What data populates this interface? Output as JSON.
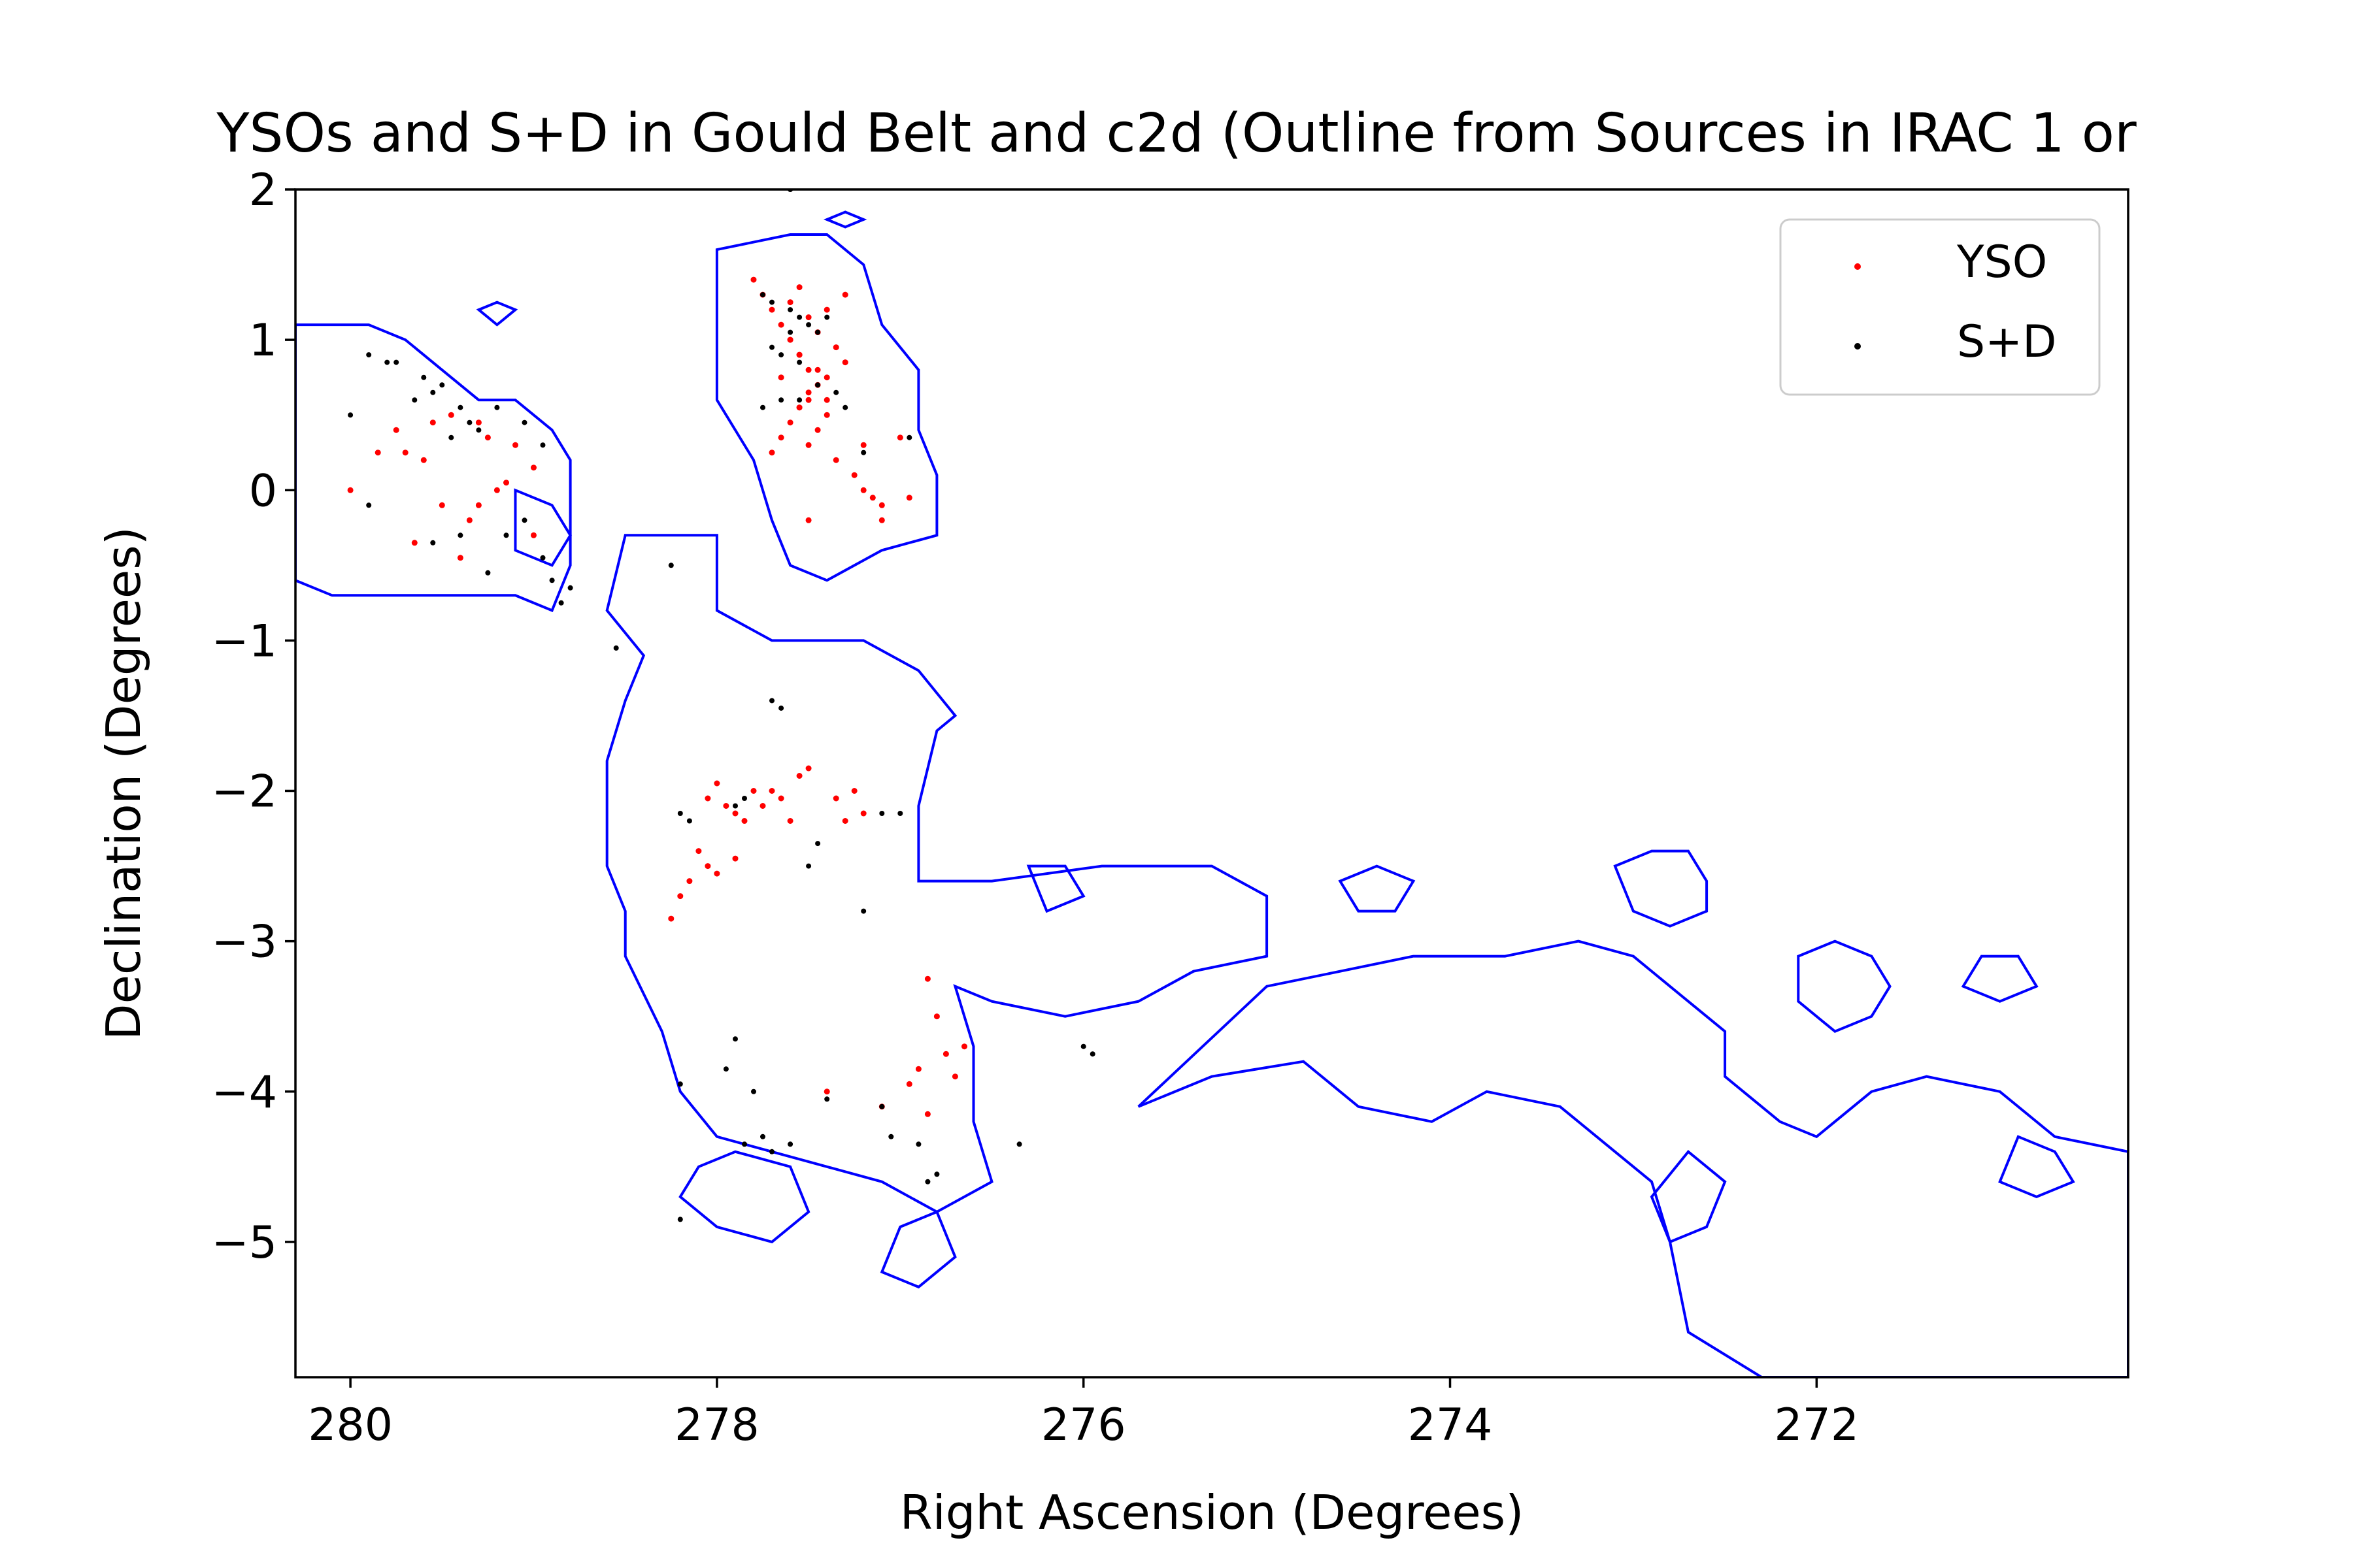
{
  "chart_data": {
    "type": "scatter",
    "title": "YSOs and S+D in Gould Belt and c2d (Outline from Sources in IRAC 1 or",
    "xlabel": "Right Ascension (Degrees)",
    "ylabel": "Declination (Degrees)",
    "xlim": [
      280.3,
      270.3
    ],
    "ylim": [
      -5.9,
      2.0
    ],
    "x_inverted": true,
    "xticks": [
      280,
      278,
      276,
      274,
      272
    ],
    "xtick_labels": [
      "280",
      "278",
      "276",
      "274",
      "272"
    ],
    "yticks": [
      2,
      1,
      0,
      -1,
      -2,
      -3,
      -4,
      -5
    ],
    "ytick_labels": [
      "2",
      "1",
      "0",
      "−1",
      "−2",
      "−3",
      "−4",
      "−5"
    ],
    "grid": false,
    "legend_position": "top-right",
    "outline_color": "#0000ff",
    "outline_polygons": [
      [
        [
          280.3,
          1.1
        ],
        [
          280.1,
          1.1
        ],
        [
          279.9,
          1.1
        ],
        [
          279.7,
          1.0
        ],
        [
          279.5,
          0.8
        ],
        [
          279.3,
          0.6
        ],
        [
          279.1,
          0.6
        ],
        [
          278.9,
          0.4
        ],
        [
          278.8,
          0.2
        ],
        [
          278.8,
          -0.1
        ],
        [
          278.8,
          -0.5
        ],
        [
          278.9,
          -0.8
        ],
        [
          279.1,
          -0.7
        ],
        [
          279.4,
          -0.7
        ],
        [
          279.7,
          -0.7
        ],
        [
          279.9,
          -0.7
        ],
        [
          280.1,
          -0.7
        ],
        [
          280.3,
          -0.6
        ]
      ],
      [
        [
          278.5,
          -0.3
        ],
        [
          278.0,
          -0.3
        ],
        [
          278.0,
          -0.8
        ],
        [
          277.7,
          -1.0
        ],
        [
          277.2,
          -1.0
        ],
        [
          276.9,
          -1.2
        ],
        [
          276.7,
          -1.5
        ],
        [
          276.8,
          -1.6
        ],
        [
          276.9,
          -2.1
        ],
        [
          276.9,
          -2.6
        ],
        [
          276.5,
          -2.6
        ],
        [
          275.9,
          -2.5
        ],
        [
          275.3,
          -2.5
        ],
        [
          275.0,
          -2.7
        ],
        [
          275.0,
          -3.1
        ],
        [
          275.4,
          -3.2
        ],
        [
          275.7,
          -3.4
        ],
        [
          276.1,
          -3.5
        ],
        [
          276.5,
          -3.4
        ],
        [
          276.7,
          -3.3
        ],
        [
          276.6,
          -3.7
        ],
        [
          276.6,
          -4.2
        ],
        [
          276.5,
          -4.6
        ],
        [
          276.8,
          -4.8
        ],
        [
          277.1,
          -4.6
        ],
        [
          277.4,
          -4.5
        ],
        [
          277.7,
          -4.4
        ],
        [
          278.0,
          -4.3
        ],
        [
          278.2,
          -4.0
        ],
        [
          278.3,
          -3.6
        ],
        [
          278.5,
          -3.1
        ],
        [
          278.5,
          -2.8
        ],
        [
          278.6,
          -2.5
        ],
        [
          278.6,
          -1.8
        ],
        [
          278.5,
          -1.4
        ],
        [
          278.4,
          -1.1
        ],
        [
          278.6,
          -0.8
        ]
      ],
      [
        [
          278.0,
          1.6
        ],
        [
          277.6,
          1.7
        ],
        [
          277.4,
          1.7
        ],
        [
          277.2,
          1.5
        ],
        [
          277.1,
          1.1
        ],
        [
          276.9,
          0.8
        ],
        [
          276.9,
          0.4
        ],
        [
          276.8,
          0.1
        ],
        [
          276.8,
          -0.3
        ],
        [
          277.1,
          -0.4
        ],
        [
          277.4,
          -0.6
        ],
        [
          277.6,
          -0.5
        ],
        [
          277.7,
          -0.2
        ],
        [
          277.8,
          0.2
        ],
        [
          278.0,
          0.6
        ],
        [
          278.0,
          1.1
        ]
      ],
      [
        [
          275.0,
          -3.3
        ],
        [
          274.6,
          -3.2
        ],
        [
          274.2,
          -3.1
        ],
        [
          273.7,
          -3.1
        ],
        [
          273.3,
          -3.0
        ],
        [
          273.0,
          -3.1
        ],
        [
          272.7,
          -3.4
        ],
        [
          272.5,
          -3.6
        ],
        [
          272.5,
          -3.9
        ],
        [
          272.2,
          -4.2
        ],
        [
          272.0,
          -4.3
        ],
        [
          271.7,
          -4.0
        ],
        [
          271.4,
          -3.9
        ],
        [
          271.0,
          -4.0
        ],
        [
          270.7,
          -4.3
        ],
        [
          270.3,
          -4.4
        ],
        [
          270.3,
          -5.9
        ],
        [
          271.0,
          -5.9
        ],
        [
          271.7,
          -5.9
        ],
        [
          272.3,
          -5.9
        ],
        [
          272.7,
          -5.6
        ],
        [
          272.8,
          -5.0
        ],
        [
          272.9,
          -4.6
        ],
        [
          273.1,
          -4.4
        ],
        [
          273.4,
          -4.1
        ],
        [
          273.8,
          -4.0
        ],
        [
          274.1,
          -4.2
        ],
        [
          274.5,
          -4.1
        ],
        [
          274.8,
          -3.8
        ],
        [
          275.3,
          -3.9
        ],
        [
          275.7,
          -4.1
        ]
      ],
      [
        [
          273.1,
          -2.5
        ],
        [
          272.9,
          -2.4
        ],
        [
          272.7,
          -2.4
        ],
        [
          272.6,
          -2.6
        ],
        [
          272.6,
          -2.8
        ],
        [
          272.8,
          -2.9
        ],
        [
          273.0,
          -2.8
        ]
      ],
      [
        [
          272.1,
          -3.1
        ],
        [
          271.9,
          -3.0
        ],
        [
          271.7,
          -3.1
        ],
        [
          271.6,
          -3.3
        ],
        [
          271.7,
          -3.5
        ],
        [
          271.9,
          -3.6
        ],
        [
          272.1,
          -3.4
        ]
      ],
      [
        [
          279.1,
          0.0
        ],
        [
          278.9,
          -0.1
        ],
        [
          278.8,
          -0.3
        ],
        [
          278.9,
          -0.5
        ],
        [
          279.1,
          -0.4
        ]
      ],
      [
        [
          277.0,
          -4.9
        ],
        [
          276.8,
          -4.8
        ],
        [
          276.7,
          -5.1
        ],
        [
          276.9,
          -5.3
        ],
        [
          277.1,
          -5.2
        ]
      ],
      [
        [
          278.1,
          -4.5
        ],
        [
          277.9,
          -4.4
        ],
        [
          277.6,
          -4.5
        ],
        [
          277.5,
          -4.8
        ],
        [
          277.7,
          -5.0
        ],
        [
          278.0,
          -4.9
        ],
        [
          278.2,
          -4.7
        ]
      ],
      [
        [
          271.1,
          -3.1
        ],
        [
          270.9,
          -3.1
        ],
        [
          270.8,
          -3.3
        ],
        [
          271.0,
          -3.4
        ],
        [
          271.2,
          -3.3
        ]
      ],
      [
        [
          270.9,
          -4.3
        ],
        [
          270.7,
          -4.4
        ],
        [
          270.6,
          -4.6
        ],
        [
          270.8,
          -4.7
        ],
        [
          271.0,
          -4.6
        ]
      ],
      [
        [
          272.7,
          -4.4
        ],
        [
          272.5,
          -4.6
        ],
        [
          272.6,
          -4.9
        ],
        [
          272.8,
          -5.0
        ],
        [
          272.9,
          -4.7
        ]
      ],
      [
        [
          274.6,
          -2.6
        ],
        [
          274.4,
          -2.5
        ],
        [
          274.2,
          -2.6
        ],
        [
          274.3,
          -2.8
        ],
        [
          274.5,
          -2.8
        ]
      ],
      [
        [
          276.3,
          -2.5
        ],
        [
          276.1,
          -2.5
        ],
        [
          276.0,
          -2.7
        ],
        [
          276.2,
          -2.8
        ]
      ],
      [
        [
          279.2,
          1.25
        ],
        [
          279.1,
          1.2
        ],
        [
          279.2,
          1.1
        ],
        [
          279.3,
          1.2
        ]
      ],
      [
        [
          277.3,
          1.85
        ],
        [
          277.2,
          1.8
        ],
        [
          277.3,
          1.75
        ],
        [
          277.4,
          1.8
        ]
      ]
    ],
    "series": [
      {
        "name": "YSO",
        "color": "#ff0000",
        "x": [
          279.7,
          279.75,
          279.55,
          279.45,
          279.3,
          279.25,
          279.1,
          279.0,
          279.2,
          279.35,
          279.5,
          279.6,
          280.0,
          279.85,
          279.4,
          279.65,
          279.3,
          279.0,
          279.15,
          277.8,
          277.75,
          277.7,
          277.65,
          277.6,
          277.55,
          277.5,
          277.45,
          277.4,
          277.55,
          277.6,
          277.5,
          277.45,
          277.35,
          277.3,
          277.4,
          277.5,
          277.55,
          277.6,
          277.65,
          277.7,
          277.45,
          277.5,
          277.35,
          277.25,
          277.2,
          277.15,
          277.1,
          277.3,
          277.4,
          277.6,
          277.55,
          277.45,
          277.5,
          277.2,
          277.0,
          276.95,
          277.1,
          277.4,
          277.55,
          277.5,
          277.65,
          278.05,
          278.0,
          277.95,
          277.9,
          277.85,
          277.8,
          277.75,
          277.7,
          277.65,
          277.55,
          277.35,
          277.25,
          277.2,
          277.5,
          278.1,
          278.05,
          278.0,
          277.9,
          278.15,
          278.2,
          278.25,
          277.6,
          277.3,
          276.85,
          276.8,
          276.75,
          276.7,
          276.9,
          276.95,
          276.85,
          277.1,
          277.4,
          276.65
        ],
        "y": [
          0.25,
          0.4,
          0.45,
          0.5,
          0.45,
          0.35,
          0.3,
          0.15,
          0.0,
          -0.2,
          -0.1,
          0.2,
          0.0,
          0.25,
          -0.45,
          -0.35,
          -0.1,
          -0.3,
          0.05,
          1.4,
          1.3,
          1.2,
          1.1,
          1.0,
          0.9,
          0.8,
          0.7,
          0.6,
          1.35,
          1.25,
          1.15,
          1.05,
          0.95,
          0.85,
          0.75,
          0.65,
          0.55,
          0.45,
          0.35,
          0.25,
          0.4,
          0.3,
          0.2,
          0.1,
          0.0,
          -0.05,
          -0.1,
          1.3,
          1.2,
          1.0,
          0.9,
          0.8,
          0.6,
          0.3,
          0.35,
          -0.05,
          -0.2,
          0.5,
          0.55,
          -0.2,
          0.75,
          -2.05,
          -1.95,
          -2.1,
          -2.15,
          -2.2,
          -2.0,
          -2.1,
          -2.0,
          -2.05,
          -1.9,
          -2.05,
          -2.0,
          -2.15,
          -1.85,
          -2.4,
          -2.5,
          -2.55,
          -2.45,
          -2.6,
          -2.7,
          -2.85,
          -2.2,
          -2.2,
          -3.25,
          -3.5,
          -3.75,
          -3.9,
          -3.85,
          -3.95,
          -4.15,
          -4.1,
          -4.0,
          -3.7
        ],
        "marker_size_px": 9
      },
      {
        "name": "S+D",
        "color": "#000000",
        "x": [
          279.9,
          279.75,
          279.6,
          279.5,
          279.4,
          279.35,
          279.3,
          279.2,
          279.05,
          278.95,
          279.45,
          279.55,
          279.65,
          279.8,
          280.0,
          279.9,
          279.55,
          279.4,
          279.15,
          278.9,
          278.85,
          278.95,
          278.8,
          279.25,
          279.05,
          277.75,
          277.7,
          277.6,
          277.55,
          277.5,
          277.45,
          277.4,
          277.6,
          277.7,
          277.65,
          277.55,
          277.45,
          277.35,
          277.3,
          277.55,
          277.2,
          276.95,
          277.65,
          277.75,
          277.6,
          278.55,
          278.25,
          277.7,
          277.65,
          278.2,
          278.15,
          277.9,
          277.85,
          277.0,
          277.5,
          277.2,
          277.45,
          277.1,
          278.2,
          277.9,
          277.95,
          277.8,
          277.85,
          277.75,
          277.7,
          277.6,
          277.4,
          277.1,
          277.05,
          276.9,
          276.85,
          276.8,
          278.2,
          276.35,
          276.0,
          275.95
        ],
        "y": [
          0.9,
          0.85,
          0.75,
          0.7,
          0.55,
          0.45,
          0.4,
          0.55,
          0.45,
          0.3,
          0.35,
          0.65,
          0.6,
          0.85,
          0.5,
          -0.1,
          -0.35,
          -0.3,
          -0.3,
          -0.6,
          -0.75,
          -0.45,
          -0.65,
          -0.55,
          -0.2,
          1.3,
          1.25,
          1.2,
          1.15,
          1.1,
          1.05,
          1.15,
          1.05,
          0.95,
          0.9,
          0.85,
          0.7,
          0.65,
          0.55,
          0.6,
          0.25,
          0.35,
          0.6,
          0.55,
          2.0,
          -1.05,
          -0.5,
          -1.4,
          -1.45,
          -2.15,
          -2.2,
          -2.1,
          -2.05,
          -2.15,
          -2.5,
          -2.8,
          -2.35,
          -2.15,
          -3.95,
          -3.65,
          -3.85,
          -4.0,
          -4.35,
          -4.3,
          -4.4,
          -4.35,
          -4.05,
          -4.1,
          -4.3,
          -4.35,
          -4.6,
          -4.55,
          -4.85,
          -4.35,
          -3.7,
          -3.75
        ],
        "marker_size_px": 8
      }
    ]
  }
}
